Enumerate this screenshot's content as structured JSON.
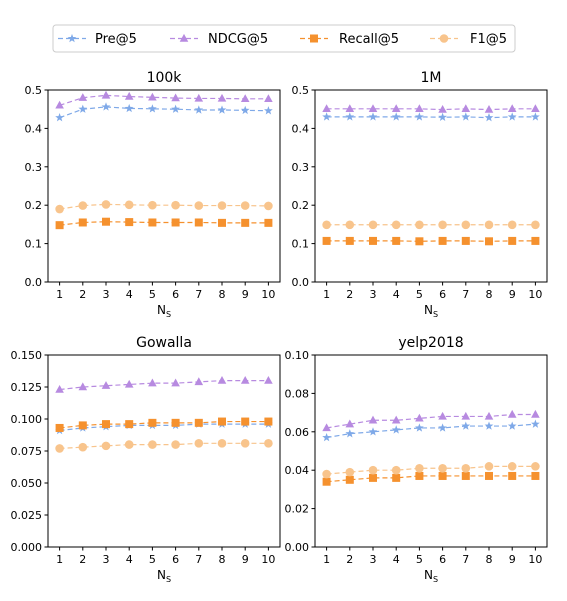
{
  "legend": {
    "items": [
      {
        "label": "Pre@5",
        "color": "#7fa9e8",
        "marker": "star"
      },
      {
        "label": "NDCG@5",
        "color": "#b78ae0",
        "marker": "triangle"
      },
      {
        "label": "Recall@5",
        "color": "#f5912e",
        "marker": "square"
      },
      {
        "label": "F1@5",
        "color": "#f8c48c",
        "marker": "circle"
      }
    ]
  },
  "chart_data": [
    {
      "type": "line",
      "title": "100k",
      "xlabel": "N",
      "xlabel_sub": "S",
      "x": [
        1,
        2,
        3,
        4,
        5,
        6,
        7,
        8,
        9,
        10
      ],
      "ylim": [
        0,
        0.5
      ],
      "yticks": [
        "0.0",
        "0.1",
        "0.2",
        "0.3",
        "0.4",
        "0.5"
      ],
      "ytick_values": [
        0,
        0.1,
        0.2,
        0.3,
        0.4,
        0.5
      ],
      "grid": false,
      "series": [
        {
          "name": "Pre@5",
          "values": [
            0.428,
            0.45,
            0.456,
            0.452,
            0.451,
            0.45,
            0.448,
            0.448,
            0.447,
            0.446
          ]
        },
        {
          "name": "NDCG@5",
          "values": [
            0.46,
            0.48,
            0.486,
            0.483,
            0.481,
            0.479,
            0.478,
            0.478,
            0.477,
            0.477
          ]
        },
        {
          "name": "Recall@5",
          "values": [
            0.148,
            0.155,
            0.157,
            0.156,
            0.155,
            0.155,
            0.155,
            0.154,
            0.154,
            0.154
          ]
        },
        {
          "name": "F1@5",
          "values": [
            0.19,
            0.199,
            0.202,
            0.201,
            0.2,
            0.2,
            0.199,
            0.199,
            0.199,
            0.198
          ]
        }
      ]
    },
    {
      "type": "line",
      "title": "1M",
      "xlabel": "N",
      "xlabel_sub": "S",
      "x": [
        1,
        2,
        3,
        4,
        5,
        6,
        7,
        8,
        9,
        10
      ],
      "ylim": [
        0,
        0.5
      ],
      "yticks": [
        "0.0",
        "0.1",
        "0.2",
        "0.3",
        "0.4",
        "0.5"
      ],
      "ytick_values": [
        0,
        0.1,
        0.2,
        0.3,
        0.4,
        0.5
      ],
      "grid": false,
      "series": [
        {
          "name": "Pre@5",
          "values": [
            0.43,
            0.43,
            0.43,
            0.43,
            0.43,
            0.429,
            0.43,
            0.428,
            0.43,
            0.43
          ]
        },
        {
          "name": "NDCG@5",
          "values": [
            0.451,
            0.451,
            0.451,
            0.451,
            0.451,
            0.449,
            0.451,
            0.449,
            0.451,
            0.451
          ]
        },
        {
          "name": "Recall@5",
          "values": [
            0.107,
            0.107,
            0.107,
            0.107,
            0.106,
            0.107,
            0.107,
            0.106,
            0.107,
            0.107
          ]
        },
        {
          "name": "F1@5",
          "values": [
            0.149,
            0.149,
            0.149,
            0.149,
            0.149,
            0.149,
            0.149,
            0.149,
            0.149,
            0.149
          ]
        }
      ]
    },
    {
      "type": "line",
      "title": "Gowalla",
      "xlabel": "N",
      "xlabel_sub": "S",
      "x": [
        1,
        2,
        3,
        4,
        5,
        6,
        7,
        8,
        9,
        10
      ],
      "ylim": [
        0,
        0.15
      ],
      "yticks": [
        "0.000",
        "0.025",
        "0.050",
        "0.075",
        "0.100",
        "0.125",
        "0.150"
      ],
      "ytick_values": [
        0,
        0.025,
        0.05,
        0.075,
        0.1,
        0.125,
        0.15
      ],
      "grid": false,
      "series": [
        {
          "name": "Pre@5",
          "values": [
            0.091,
            0.093,
            0.094,
            0.095,
            0.095,
            0.095,
            0.096,
            0.096,
            0.096,
            0.096
          ]
        },
        {
          "name": "NDCG@5",
          "values": [
            0.123,
            0.125,
            0.126,
            0.127,
            0.128,
            0.128,
            0.129,
            0.13,
            0.13,
            0.13
          ]
        },
        {
          "name": "Recall@5",
          "values": [
            0.093,
            0.095,
            0.096,
            0.096,
            0.097,
            0.097,
            0.097,
            0.098,
            0.098,
            0.098
          ]
        },
        {
          "name": "F1@5",
          "values": [
            0.077,
            0.078,
            0.079,
            0.08,
            0.08,
            0.08,
            0.081,
            0.081,
            0.081,
            0.081
          ]
        }
      ]
    },
    {
      "type": "line",
      "title": "yelp2018",
      "xlabel": "N",
      "xlabel_sub": "S",
      "x": [
        1,
        2,
        3,
        4,
        5,
        6,
        7,
        8,
        9,
        10
      ],
      "ylim": [
        0,
        0.1
      ],
      "yticks": [
        "0.00",
        "0.02",
        "0.04",
        "0.06",
        "0.08",
        "0.10"
      ],
      "ytick_values": [
        0,
        0.02,
        0.04,
        0.06,
        0.08,
        0.1
      ],
      "grid": false,
      "series": [
        {
          "name": "Pre@5",
          "values": [
            0.057,
            0.059,
            0.06,
            0.061,
            0.062,
            0.062,
            0.063,
            0.063,
            0.063,
            0.064
          ]
        },
        {
          "name": "NDCG@5",
          "values": [
            0.062,
            0.064,
            0.066,
            0.066,
            0.067,
            0.068,
            0.068,
            0.068,
            0.069,
            0.069
          ]
        },
        {
          "name": "Recall@5",
          "values": [
            0.034,
            0.035,
            0.036,
            0.036,
            0.037,
            0.037,
            0.037,
            0.037,
            0.037,
            0.037
          ]
        },
        {
          "name": "F1@5",
          "values": [
            0.038,
            0.039,
            0.04,
            0.04,
            0.041,
            0.041,
            0.041,
            0.042,
            0.042,
            0.042
          ]
        }
      ]
    }
  ]
}
